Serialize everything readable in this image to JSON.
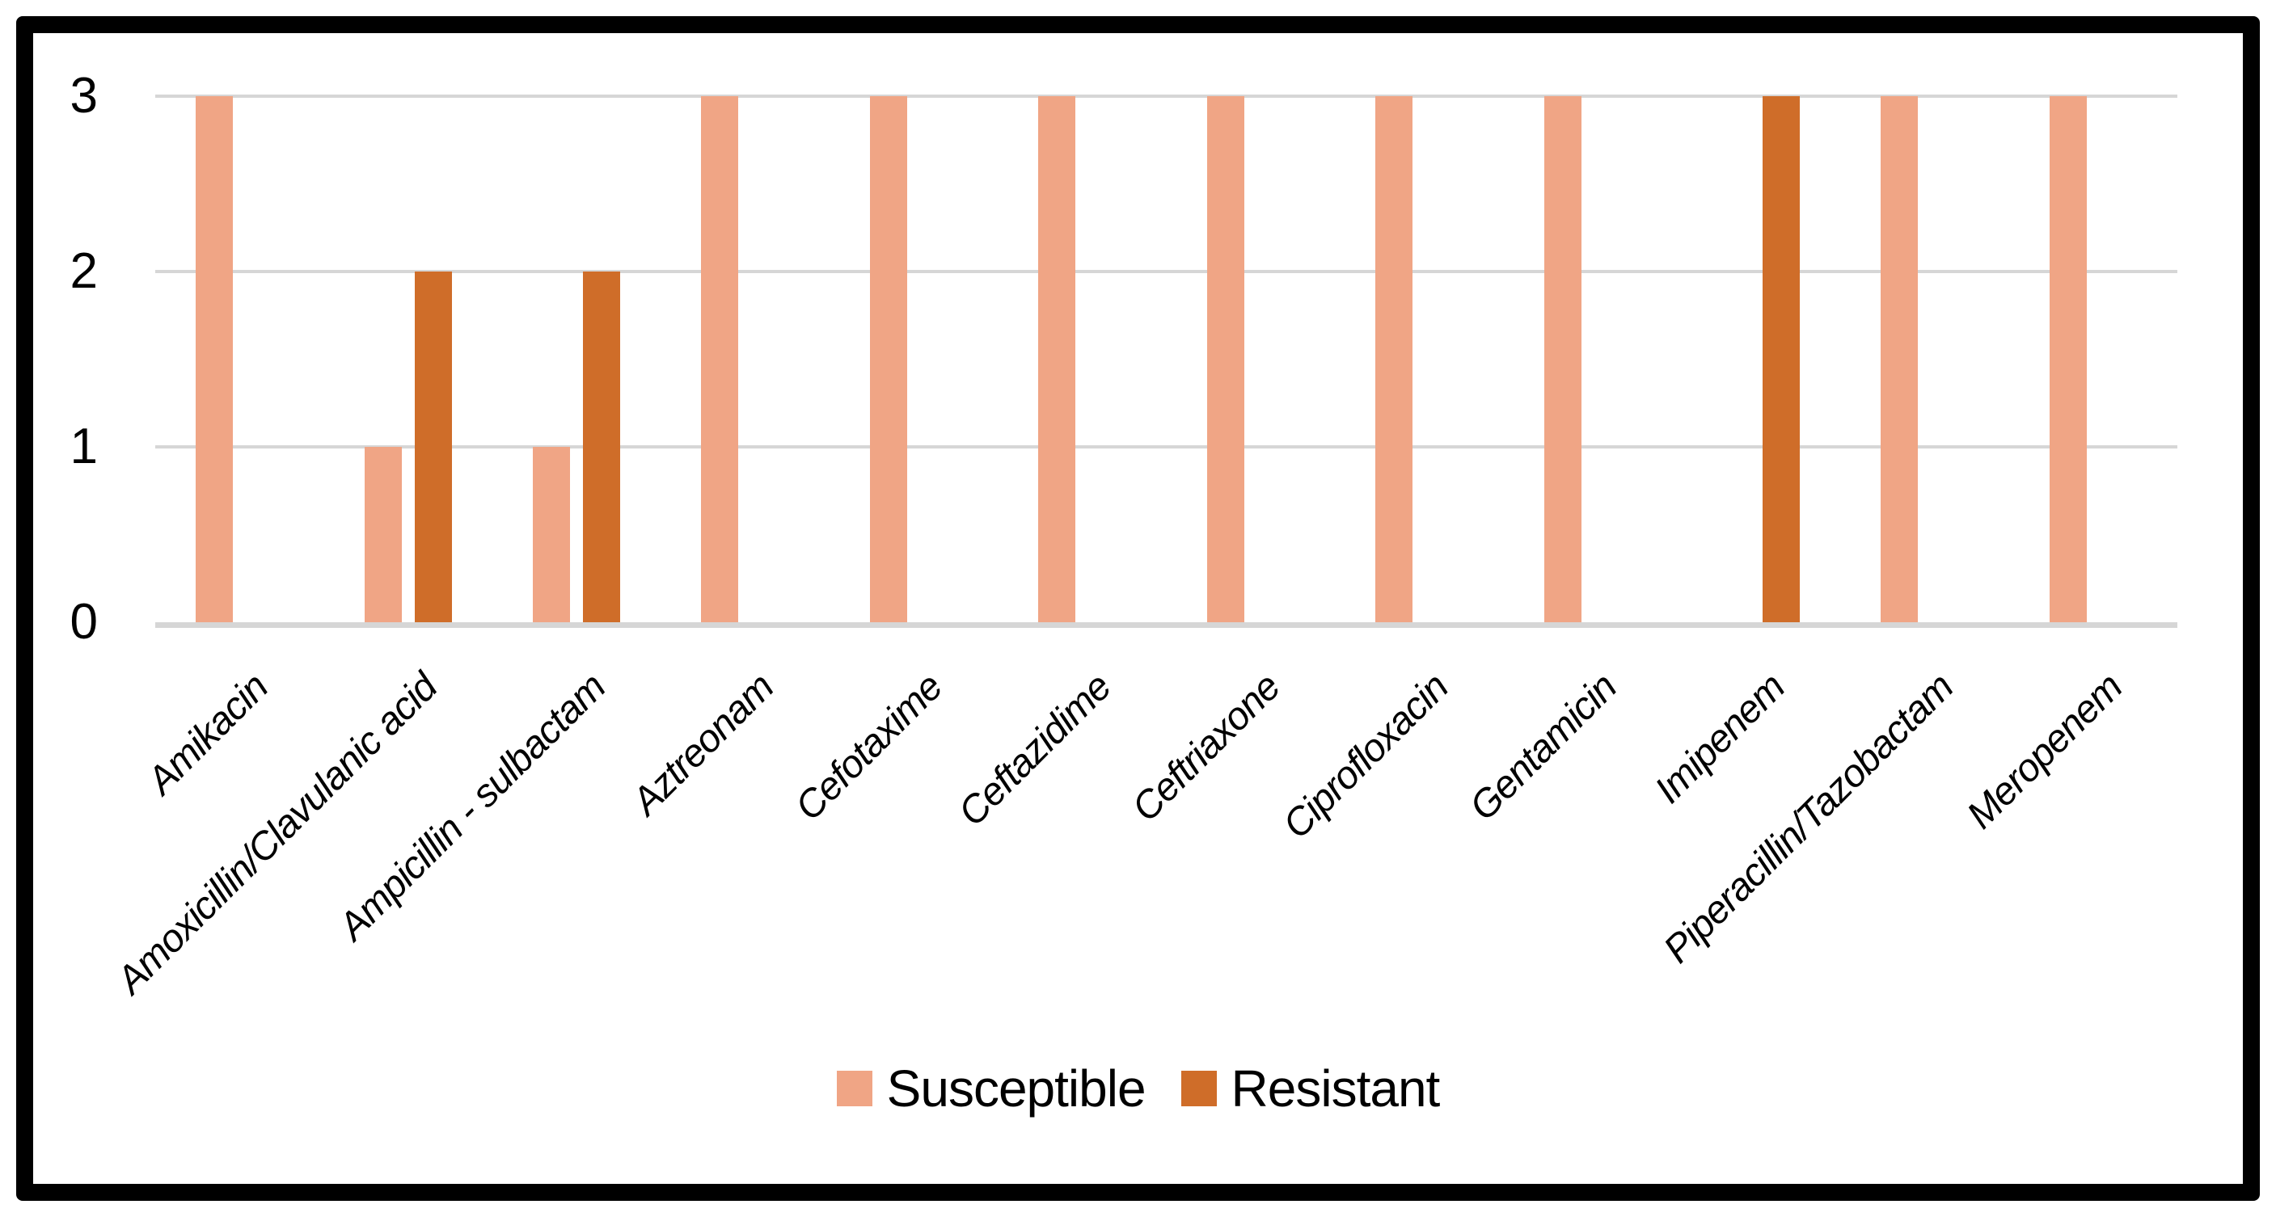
{
  "chart_data": {
    "type": "bar",
    "categories": [
      "Amikacin",
      "Amoxicillin/Clavulanic acid",
      "Ampicillin - sulbactam",
      "Aztreonam",
      "Cefotaxime",
      "Ceftazidime",
      "Ceftriaxone",
      "Ciprofloxacin",
      "Gentamicin",
      "Imipenem",
      "Piperacillin/Tazobactam",
      "Meropenem"
    ],
    "series": [
      {
        "name": "Susceptible",
        "color": "#F0A585",
        "values": [
          3,
          1,
          1,
          3,
          3,
          3,
          3,
          3,
          3,
          0,
          3,
          3
        ]
      },
      {
        "name": "Resistant",
        "color": "#CF6D29",
        "values": [
          0,
          2,
          2,
          0,
          0,
          0,
          0,
          0,
          0,
          3,
          0,
          0
        ]
      }
    ],
    "ylim": [
      0,
      3
    ],
    "yticks": [
      0,
      1,
      2,
      3
    ],
    "y_tick_labels": [
      "0",
      "1",
      "2",
      "3"
    ],
    "grid": "horizontal",
    "legend_position": "bottom",
    "x_label_style": "italic rotated 45deg"
  },
  "colors": {
    "gridline": "#D6D6D6",
    "axis_line": "#D6D6D6",
    "figure_border": "#000000",
    "background": "#FFFFFF"
  }
}
